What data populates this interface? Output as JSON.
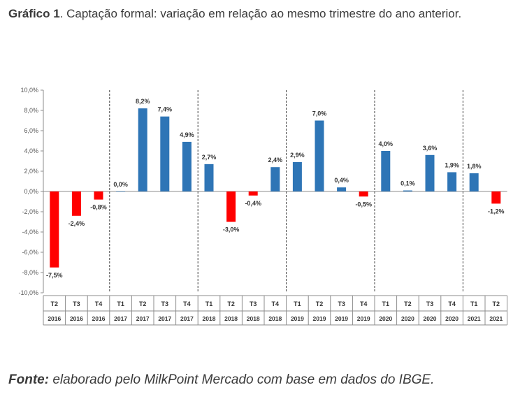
{
  "title_prefix": "Gráfico 1",
  "title_text": ". Captação formal: variação em relação ao mesmo trimestre do ano anterior.",
  "source_prefix": "Fonte:",
  "source_text": " elaborado pelo MilkPoint Mercado com base em dados do IBGE.",
  "chart_data": {
    "type": "bar",
    "categories": [
      {
        "q": "T2",
        "y": "2016"
      },
      {
        "q": "T3",
        "y": "2016"
      },
      {
        "q": "T4",
        "y": "2016"
      },
      {
        "q": "T1",
        "y": "2017"
      },
      {
        "q": "T2",
        "y": "2017"
      },
      {
        "q": "T3",
        "y": "2017"
      },
      {
        "q": "T4",
        "y": "2017"
      },
      {
        "q": "T1",
        "y": "2018"
      },
      {
        "q": "T2",
        "y": "2018"
      },
      {
        "q": "T3",
        "y": "2018"
      },
      {
        "q": "T4",
        "y": "2018"
      },
      {
        "q": "T1",
        "y": "2019"
      },
      {
        "q": "T2",
        "y": "2019"
      },
      {
        "q": "T3",
        "y": "2019"
      },
      {
        "q": "T4",
        "y": "2019"
      },
      {
        "q": "T1",
        "y": "2020"
      },
      {
        "q": "T2",
        "y": "2020"
      },
      {
        "q": "T3",
        "y": "2020"
      },
      {
        "q": "T4",
        "y": "2020"
      },
      {
        "q": "T1",
        "y": "2021"
      },
      {
        "q": "T2",
        "y": "2021"
      }
    ],
    "values": [
      -7.5,
      -2.4,
      -0.8,
      0.0,
      8.2,
      7.4,
      4.9,
      2.7,
      -3.0,
      -0.4,
      2.4,
      2.9,
      7.0,
      0.4,
      -0.5,
      4.0,
      0.1,
      3.6,
      1.9,
      1.8,
      -1.2
    ],
    "labels": [
      "-7,5%",
      "-2,4%",
      "-0,8%",
      "0,0%",
      "8,2%",
      "7,4%",
      "4,9%",
      "2,7%",
      "-3,0%",
      "-0,4%",
      "2,4%",
      "2,9%",
      "7,0%",
      "0,4%",
      "-0,5%",
      "4,0%",
      "0,1%",
      "3,6%",
      "1,9%",
      "1,8%",
      "-1,2%"
    ],
    "ylim": [
      -10,
      10
    ],
    "yticks": [
      -10,
      -8,
      -6,
      -4,
      -2,
      0,
      2,
      4,
      6,
      8,
      10
    ],
    "ytick_labels": [
      "-10,0%",
      "-8,0%",
      "-6,0%",
      "-4,0%",
      "-2,0%",
      "0,0%",
      "2,0%",
      "4,0%",
      "6,0%",
      "8,0%",
      "10,0%"
    ],
    "positive_color": "#2e75b6",
    "negative_color": "#ff0000",
    "year_separators_after_index": [
      2,
      6,
      10,
      14,
      18
    ],
    "grid": false
  }
}
